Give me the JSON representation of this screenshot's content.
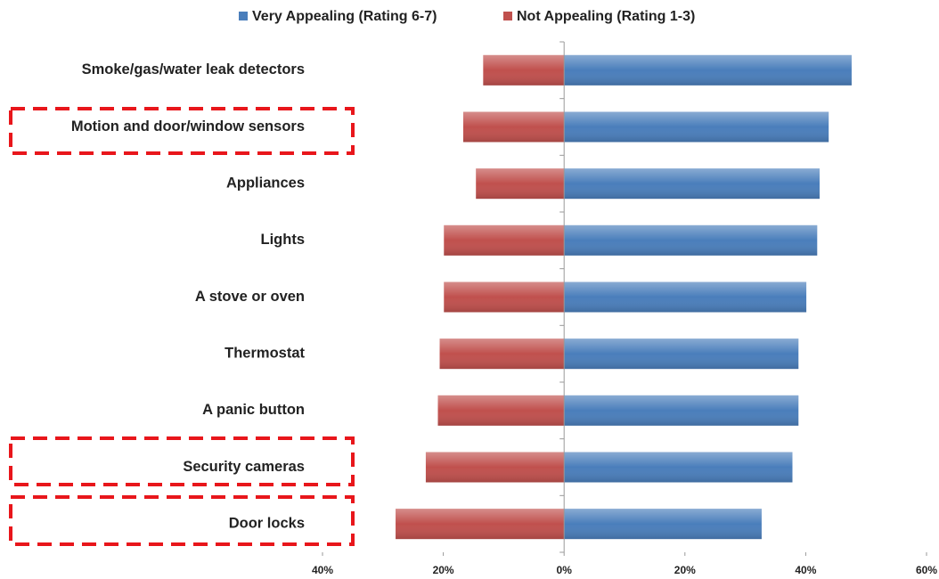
{
  "chart_data": {
    "type": "diverging_bar",
    "categories": [
      "Smoke/gas/water leak detectors",
      "Motion and door/window sensors",
      "Appliances",
      "Lights",
      "A stove or oven",
      "Thermostat",
      "A panic button",
      "Security cameras",
      "Door locks"
    ],
    "series": [
      {
        "name": "Very Appealing (Rating 6-7)",
        "color": "#4a7ebb",
        "values": [
          47.6,
          43.8,
          42.3,
          41.9,
          40.1,
          38.8,
          38.8,
          37.8,
          32.7
        ]
      },
      {
        "name": "Not Appealing (Rating 1-3)",
        "color": "#c0504d",
        "values": [
          -13.4,
          -16.7,
          -14.6,
          -19.9,
          -19.9,
          -20.6,
          -20.9,
          -22.9,
          -27.9
        ]
      }
    ],
    "xlim": [
      -40,
      60
    ],
    "xticks": [
      {
        "value": -40,
        "label": "40%"
      },
      {
        "value": -20,
        "label": "20%"
      },
      {
        "value": 0,
        "label": "0%"
      },
      {
        "value": 20,
        "label": "20%"
      },
      {
        "value": 40,
        "label": "40%"
      },
      {
        "value": 60,
        "label": "60%"
      }
    ],
    "legend": "top"
  }
}
